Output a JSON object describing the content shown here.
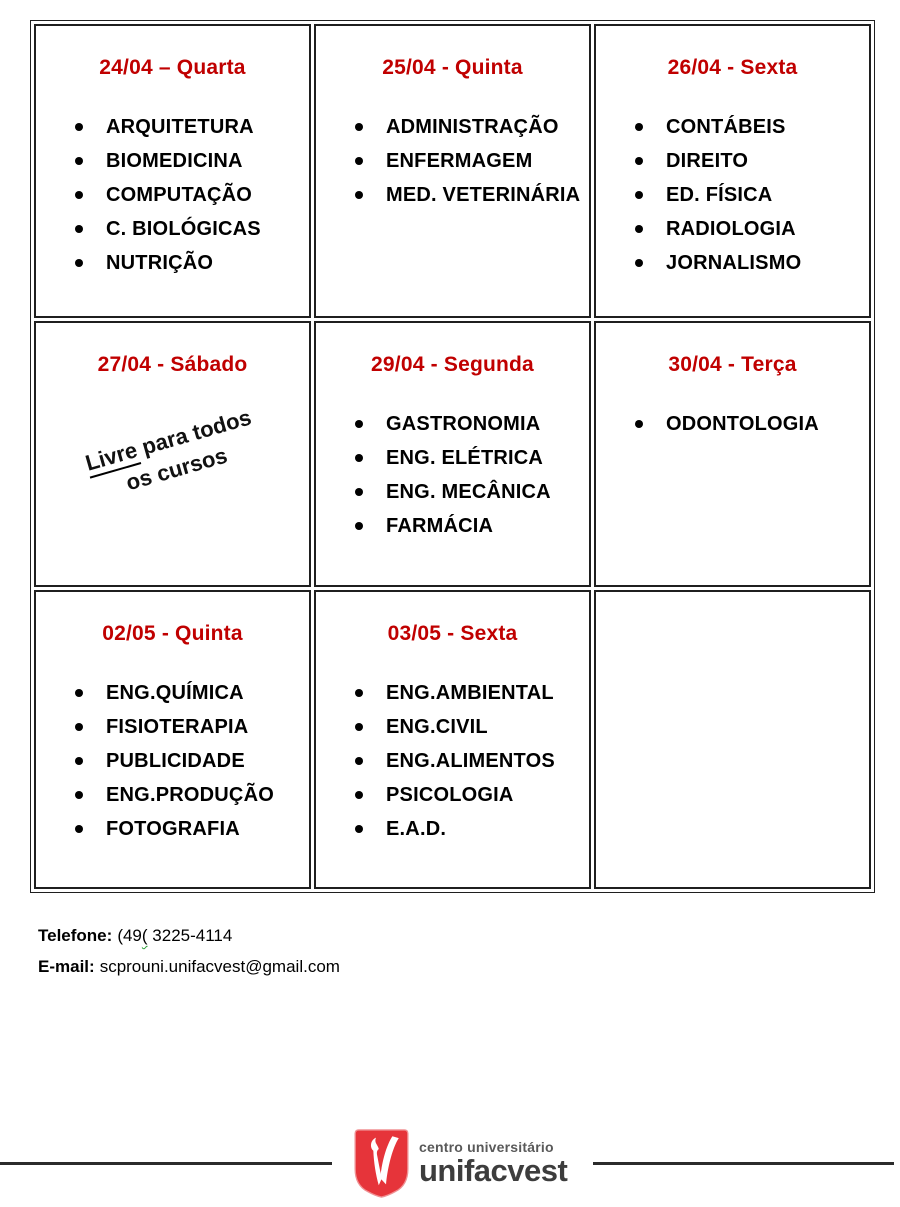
{
  "colors": {
    "date_red": "#c00000",
    "text_black": "#000000",
    "table_border": "#1f1f1f",
    "logo_red": "#e6343a",
    "logo_gray": "#3d3d3d",
    "squiggle_green": "#2e9e3a"
  },
  "schedule": {
    "cells": [
      {
        "date": "24/04 – Quarta",
        "courses": [
          "ARQUITETURA",
          "BIOMEDICINA",
          "COMPUTAÇÃO",
          "C. BIOLÓGICAS",
          "NUTRIÇÃO"
        ]
      },
      {
        "date": "25/04 - Quinta",
        "courses": [
          "ADMINISTRAÇÃO",
          "ENFERMAGEM",
          "MED. VETERINÁRIA"
        ]
      },
      {
        "date": "26/04 - Sexta",
        "courses": [
          "CONTÁBEIS",
          "DIREITO",
          "ED. FÍSICA",
          "RADIOLOGIA",
          "JORNALISMO"
        ]
      },
      {
        "date": "27/04 - Sábado",
        "courses": [],
        "note": {
          "underlined_word": "Livre",
          "line1_rest": " para todos",
          "line2": "os cursos"
        }
      },
      {
        "date": "29/04 - Segunda",
        "courses": [
          "GASTRONOMIA",
          "ENG. ELÉTRICA",
          "ENG. MECÂNICA",
          "FARMÁCIA"
        ]
      },
      {
        "date": "30/04 - Terça",
        "courses": [
          "ODONTOLOGIA"
        ]
      },
      {
        "date": "02/05 - Quinta",
        "courses": [
          "ENG.QUÍMICA",
          "FISIOTERAPIA",
          "PUBLICIDADE",
          "ENG.PRODUÇÃO",
          "FOTOGRAFIA"
        ]
      },
      {
        "date": "03/05 - Sexta",
        "courses": [
          "ENG.AMBIENTAL",
          "ENG.CIVIL",
          "ENG.ALIMENTOS",
          "PSICOLOGIA",
          "E.A.D."
        ]
      },
      {
        "date": "",
        "courses": []
      }
    ]
  },
  "contact": {
    "phone_label": "Telefone:",
    "phone_prefix": "(49",
    "phone_typo": "(",
    "phone_number": " 3225-4114",
    "email_label": "E-mail:",
    "email_value": "scprouni.unifacvest@gmail.com"
  },
  "footer": {
    "logo_subtitle": "centro universitário",
    "logo_title": "unifacvest"
  }
}
